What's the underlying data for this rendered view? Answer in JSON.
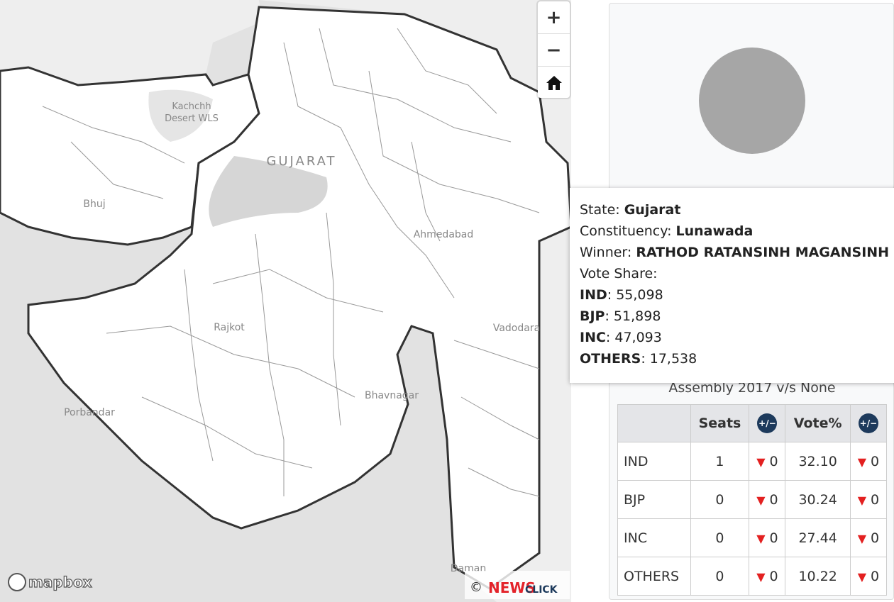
{
  "map": {
    "labels": [
      "Kachchh",
      "Desert WLS",
      "GUJARAT",
      "Bhuj",
      "Ahmedabad",
      "Rajkot",
      "Vadodara",
      "Bhavnagar",
      "Porbandar",
      "Daman"
    ],
    "zoom_in": "+",
    "zoom_out": "−",
    "attribution": "mapbox",
    "copyright": "©",
    "brand_news": "NEWS",
    "brand_click": "CLICK"
  },
  "tooltip": {
    "lines": [
      {
        "label": "State:",
        "value": "Gujarat"
      },
      {
        "label": "Constituency:",
        "value": "Lunawada"
      },
      {
        "label": "Winner:",
        "value": "RATHOD RATANSINH MAGANSINH"
      }
    ],
    "vote_share_title": "Vote Share:",
    "votes": [
      {
        "party": "IND",
        "text": ": 55,098"
      },
      {
        "party": "BJP",
        "text": ": 51,898"
      },
      {
        "party": "INC",
        "text": ": 47,093"
      },
      {
        "party": "OTHERS",
        "text": ": 17,538"
      }
    ]
  },
  "panel": {
    "subtitle": "Assembly 2017 v/s None",
    "table": {
      "headers": [
        "Seats",
        "+/−",
        "Vote%",
        "+/−"
      ],
      "rows": [
        [
          "IND",
          "1",
          "0",
          "32.10",
          "0"
        ],
        [
          "BJP",
          "0",
          "0",
          "30.24",
          "0"
        ],
        [
          "INC",
          "0",
          "0",
          "27.44",
          "0"
        ],
        [
          "OTHERS",
          "0",
          "0",
          "10.22",
          "0"
        ]
      ]
    }
  }
}
